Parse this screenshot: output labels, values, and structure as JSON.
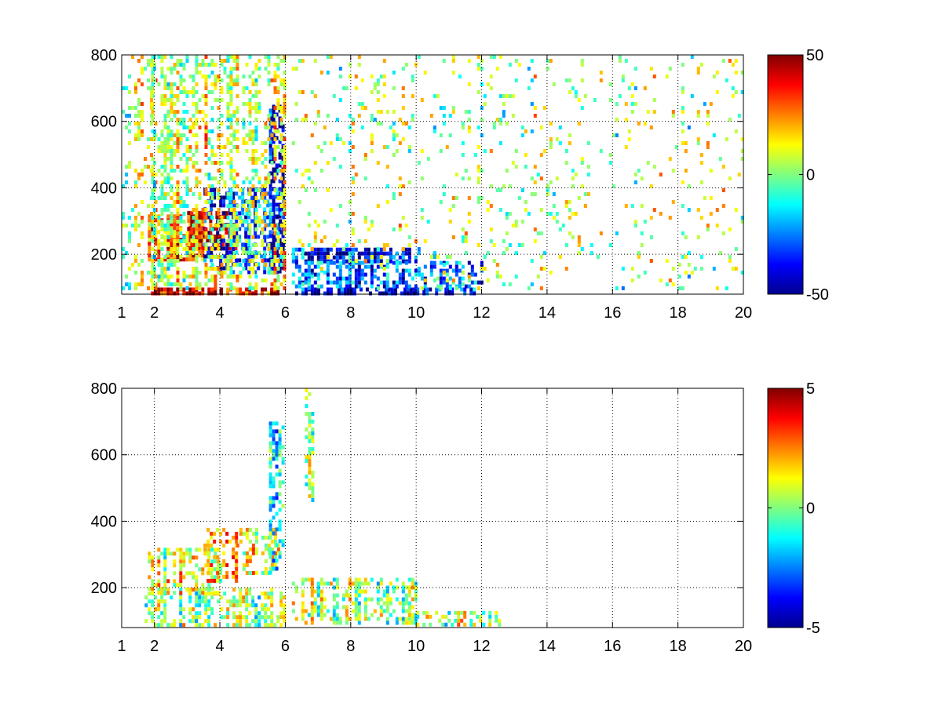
{
  "chart_data": [
    {
      "type": "heatmap",
      "title": "",
      "xlabel": "",
      "ylabel": "",
      "xlim": [
        1,
        20
      ],
      "ylim": [
        80,
        800
      ],
      "grid": true,
      "x_ticks": [
        "1",
        "2",
        "4",
        "6",
        "8",
        "10",
        "12",
        "14",
        "16",
        "18",
        "20"
      ],
      "x_tick_values": [
        1,
        2,
        4,
        6,
        8,
        10,
        12,
        14,
        16,
        18,
        20
      ],
      "y_ticks": [
        "200",
        "400",
        "600",
        "800"
      ],
      "y_tick_values": [
        200,
        400,
        600,
        800
      ],
      "colormap": "jet",
      "clim": [
        -50,
        50
      ],
      "colorbar_ticks": [
        "50",
        "0",
        "-50"
      ],
      "colorbar_tick_values": [
        50,
        0,
        -50
      ],
      "colorbar_location": "right",
      "features": [
        {
          "x": [
            1.8,
            3.9
          ],
          "y": [
            85,
            100
          ],
          "value": 45,
          "coverage": 0.95
        },
        {
          "x": [
            4.0,
            5.9
          ],
          "y": [
            85,
            100
          ],
          "value": 40,
          "coverage": 0.85
        },
        {
          "x": [
            6.3,
            7.5
          ],
          "y": [
            85,
            100
          ],
          "value": -45,
          "coverage": 0.9
        },
        {
          "x": [
            7.5,
            10.0
          ],
          "y": [
            85,
            100
          ],
          "value": -45,
          "coverage": 0.9
        },
        {
          "x": [
            10.0,
            11.8
          ],
          "y": [
            85,
            100
          ],
          "value": -35,
          "coverage": 0.7
        },
        {
          "x": [
            1.8,
            3.5
          ],
          "y": [
            190,
            320
          ],
          "value": 30,
          "coverage": 0.8
        },
        {
          "x": [
            3.0,
            4.5
          ],
          "y": [
            220,
            330
          ],
          "value": 40,
          "coverage": 0.75
        },
        {
          "x": [
            3.5,
            5.9
          ],
          "y": [
            150,
            400
          ],
          "value": -35,
          "coverage": 0.55
        },
        {
          "x": [
            5.5,
            5.9
          ],
          "y": [
            150,
            650
          ],
          "value": -45,
          "coverage": 0.6
        },
        {
          "x": [
            1.9,
            6.0
          ],
          "y": [
            100,
            800
          ],
          "value": 8,
          "coverage": 0.45
        },
        {
          "x": [
            1.0,
            2.0
          ],
          "y": [
            100,
            800
          ],
          "value": 5,
          "coverage": 0.25
        },
        {
          "x": [
            6.2,
            10.0
          ],
          "y": [
            180,
            220
          ],
          "value": -35,
          "coverage": 0.75
        },
        {
          "x": [
            6.2,
            12.0
          ],
          "y": [
            100,
            180
          ],
          "value": -25,
          "coverage": 0.6
        },
        {
          "x": [
            6.2,
            20.0
          ],
          "y": [
            100,
            800
          ],
          "value": 3,
          "coverage": 0.1
        }
      ]
    },
    {
      "type": "heatmap",
      "title": "",
      "xlabel": "",
      "ylabel": "",
      "xlim": [
        1,
        20
      ],
      "ylim": [
        80,
        800
      ],
      "grid": true,
      "x_ticks": [
        "1",
        "2",
        "4",
        "6",
        "8",
        "10",
        "12",
        "14",
        "16",
        "18",
        "20"
      ],
      "x_tick_values": [
        1,
        2,
        4,
        6,
        8,
        10,
        12,
        14,
        16,
        18,
        20
      ],
      "y_ticks": [
        "200",
        "400",
        "600",
        "800"
      ],
      "y_tick_values": [
        200,
        400,
        600,
        800
      ],
      "colormap": "jet",
      "clim": [
        -5,
        5
      ],
      "colorbar_ticks": [
        "5",
        "0",
        "-5"
      ],
      "colorbar_tick_values": [
        5,
        0,
        -5
      ],
      "colorbar_location": "right",
      "features": [
        {
          "x": [
            1.7,
            6.0
          ],
          "y": [
            85,
            200
          ],
          "value": 0.3,
          "coverage": 0.6
        },
        {
          "x": [
            1.8,
            4.0
          ],
          "y": [
            180,
            320
          ],
          "value": 1.0,
          "coverage": 0.55
        },
        {
          "x": [
            3.5,
            4.5
          ],
          "y": [
            220,
            380
          ],
          "value": 1.5,
          "coverage": 0.6
        },
        {
          "x": [
            4.5,
            5.8
          ],
          "y": [
            250,
            380
          ],
          "value": 1.0,
          "coverage": 0.5
        },
        {
          "x": [
            5.5,
            5.9
          ],
          "y": [
            250,
            700
          ],
          "value": -1.5,
          "coverage": 0.55
        },
        {
          "x": [
            6.2,
            10.0
          ],
          "y": [
            90,
            230
          ],
          "value": 0.3,
          "coverage": 0.55
        },
        {
          "x": [
            10.0,
            12.5
          ],
          "y": [
            90,
            130
          ],
          "value": 0.5,
          "coverage": 0.55
        },
        {
          "x": [
            6.6,
            6.8
          ],
          "y": [
            450,
            800
          ],
          "value": -0.5,
          "coverage": 0.5
        }
      ]
    }
  ]
}
